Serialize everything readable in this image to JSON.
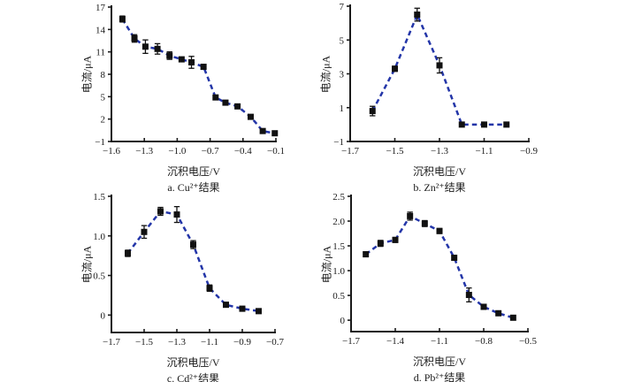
{
  "figure": {
    "background": "#ffffff",
    "line_color": "#2335a8",
    "marker_color": "#111111",
    "axis_color": "#1a1a1a"
  },
  "chart_data": [
    {
      "id": "cu",
      "type": "line",
      "caption": "a. Cu²⁺结果",
      "xlabel": "沉积电压/V",
      "ylabel": "电流/μA",
      "line_style": "dashed",
      "marker": "square",
      "grid": false,
      "legend": "none",
      "xlim": [
        -1.6,
        -0.1
      ],
      "ylim": [
        -1,
        17
      ],
      "xticks": {
        "values": [
          -1.6,
          -1.3,
          -1.0,
          -0.7,
          -0.4,
          -0.1
        ],
        "labels": [
          "−1.6",
          "−1.3",
          "−1.0",
          "−0.7",
          "−0.4",
          "−0.1"
        ]
      },
      "yticks": {
        "values": [
          -1,
          2,
          5,
          8,
          11,
          14,
          17
        ],
        "labels": [
          "−1",
          "2",
          "5",
          "8",
          "11",
          "14",
          "17"
        ]
      },
      "x": [
        -1.5,
        -1.39,
        -1.29,
        -1.18,
        -1.07,
        -0.96,
        -0.87,
        -0.76,
        -0.65,
        -0.56,
        -0.45,
        -0.33,
        -0.22,
        -0.11
      ],
      "y": [
        15.4,
        12.8,
        11.7,
        11.4,
        10.5,
        10.0,
        9.6,
        9.0,
        4.9,
        4.2,
        3.7,
        2.3,
        0.4,
        0.1
      ],
      "yerr": [
        0.4,
        0.5,
        0.9,
        0.7,
        0.5,
        0.3,
        0.8,
        0.3,
        0.3,
        0.2,
        0.25,
        0.3,
        0.2,
        0.2
      ]
    },
    {
      "id": "zn",
      "type": "line",
      "caption": "b. Zn²⁺结果",
      "xlabel": "沉积电压/V",
      "ylabel": "电流/μA",
      "line_style": "dashed",
      "marker": "square",
      "grid": false,
      "legend": "none",
      "xlim": [
        -1.7,
        -0.9
      ],
      "ylim": [
        -1,
        7
      ],
      "xticks": {
        "values": [
          -1.7,
          -1.5,
          -1.3,
          -1.1,
          -0.9
        ],
        "labels": [
          "−1.7",
          "−1.5",
          "−1.3",
          "−1.1",
          "−0.9"
        ]
      },
      "yticks": {
        "values": [
          -1,
          1,
          3,
          5,
          7
        ],
        "labels": [
          "−1",
          "1",
          "3",
          "5",
          "7"
        ]
      },
      "x": [
        -1.6,
        -1.5,
        -1.4,
        -1.3,
        -1.2,
        -1.1,
        -1.0
      ],
      "y": [
        0.8,
        3.3,
        6.5,
        3.5,
        0.0,
        0.0,
        0.0
      ],
      "yerr": [
        0.28,
        0.15,
        0.38,
        0.45,
        0.05,
        0.05,
        0.05
      ]
    },
    {
      "id": "cd",
      "type": "line",
      "caption": "c. Cd²⁺结果",
      "xlabel": "沉积电压/V",
      "ylabel": "电流/μA",
      "line_style": "dashed",
      "marker": "square",
      "grid": false,
      "legend": "none",
      "xlim": [
        -1.7,
        -0.7
      ],
      "ylim": [
        -0.22,
        1.5
      ],
      "xticks": {
        "values": [
          -1.7,
          -1.5,
          -1.3,
          -1.1,
          -0.9,
          -0.7
        ],
        "labels": [
          "−1.7",
          "−1.5",
          "−1.3",
          "−1.1",
          "−0.9",
          "−0.7"
        ]
      },
      "yticks": {
        "values": [
          0,
          0.5,
          1.0,
          1.5
        ],
        "labels": [
          "0",
          "0.5",
          "1.0",
          "1.5"
        ]
      },
      "x": [
        -1.6,
        -1.5,
        -1.4,
        -1.3,
        -1.2,
        -1.1,
        -1.0,
        -0.9,
        -0.8
      ],
      "y": [
        0.78,
        1.05,
        1.31,
        1.27,
        0.89,
        0.34,
        0.13,
        0.08,
        0.05
      ],
      "yerr": [
        0.04,
        0.08,
        0.05,
        0.1,
        0.05,
        0.04,
        0.03,
        0.03,
        0.03
      ]
    },
    {
      "id": "pb",
      "type": "line",
      "caption": "d. Pb²⁺结果",
      "xlabel": "沉积电压/V",
      "ylabel": "电流/μA",
      "line_style": "dashed",
      "marker": "square",
      "grid": false,
      "legend": "none",
      "xlim": [
        -1.7,
        -0.5
      ],
      "ylim": [
        -0.23,
        2.5
      ],
      "xticks": {
        "values": [
          -1.7,
          -1.4,
          -1.1,
          -0.8,
          -0.5
        ],
        "labels": [
          "−1.7",
          "−1.4",
          "−1.1",
          "−0.8",
          "−0.5"
        ]
      },
      "yticks": {
        "values": [
          0,
          0.5,
          1.0,
          1.5,
          2.0,
          2.5
        ],
        "labels": [
          "0",
          "0.5",
          "1.0",
          "1.5",
          "2.0",
          "2.5"
        ]
      },
      "x": [
        -1.6,
        -1.5,
        -1.4,
        -1.3,
        -1.2,
        -1.1,
        -1.0,
        -0.9,
        -0.8,
        -0.7,
        -0.6
      ],
      "y": [
        1.33,
        1.55,
        1.62,
        2.1,
        1.95,
        1.8,
        1.26,
        0.51,
        0.27,
        0.14,
        0.05
      ],
      "yerr": [
        0.05,
        0.06,
        0.05,
        0.08,
        0.06,
        0.05,
        0.05,
        0.14,
        0.05,
        0.04,
        0.04
      ]
    }
  ]
}
